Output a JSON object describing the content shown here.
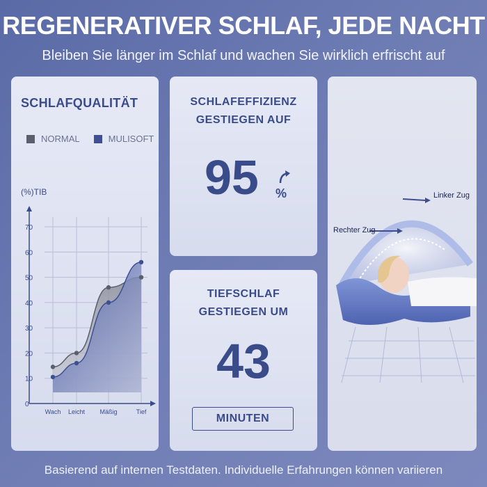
{
  "header": {
    "title": "REGENERATIVER SCHLAF, JEDE NACHT",
    "subtitle": "Bleiben Sie länger im Schlaf und wachen Sie wirklich erfrischt auf"
  },
  "chart_panel": {
    "title": "SCHLAFQUALITÄT",
    "legend": [
      {
        "label": "NORMAL",
        "color": "#5b5f6b"
      },
      {
        "label": "MULISOFT",
        "color": "#3e4f92"
      }
    ]
  },
  "chart_data": {
    "type": "area",
    "title": "SCHLAFQUALITÄT",
    "ylabel": "(%)TIB",
    "xlabel": "",
    "categories": [
      "Wach",
      "Leicht",
      "Mäßig",
      "Tief"
    ],
    "yticks": [
      "0",
      "10",
      "20",
      "30",
      "40",
      "50",
      "60",
      "70"
    ],
    "ylim": [
      0,
      70
    ],
    "grid": true,
    "series": [
      {
        "name": "NORMAL",
        "values": [
          14.5,
          20,
          46,
          50
        ],
        "color": "#5b5f6b"
      },
      {
        "name": "MULISOFT",
        "values": [
          10.5,
          16,
          40,
          56
        ],
        "color": "#3e4f92"
      }
    ]
  },
  "efficiency": {
    "title_line1": "SCHLAFEFFIZIENZ",
    "title_line2": "GESTIEGEN AUF",
    "value": "95",
    "unit": "%"
  },
  "deep_sleep": {
    "title_line1": "TIEFSCHLAF",
    "title_line2": "GESTIEGEN UM",
    "value": "43",
    "unit": "MINUTEN"
  },
  "illustration": {
    "label_left": "Linker Zug",
    "label_right": "Rechter Zug"
  },
  "footer": {
    "note": "Basierend auf internen Testdaten. Individuelle Erfahrungen können variieren"
  }
}
